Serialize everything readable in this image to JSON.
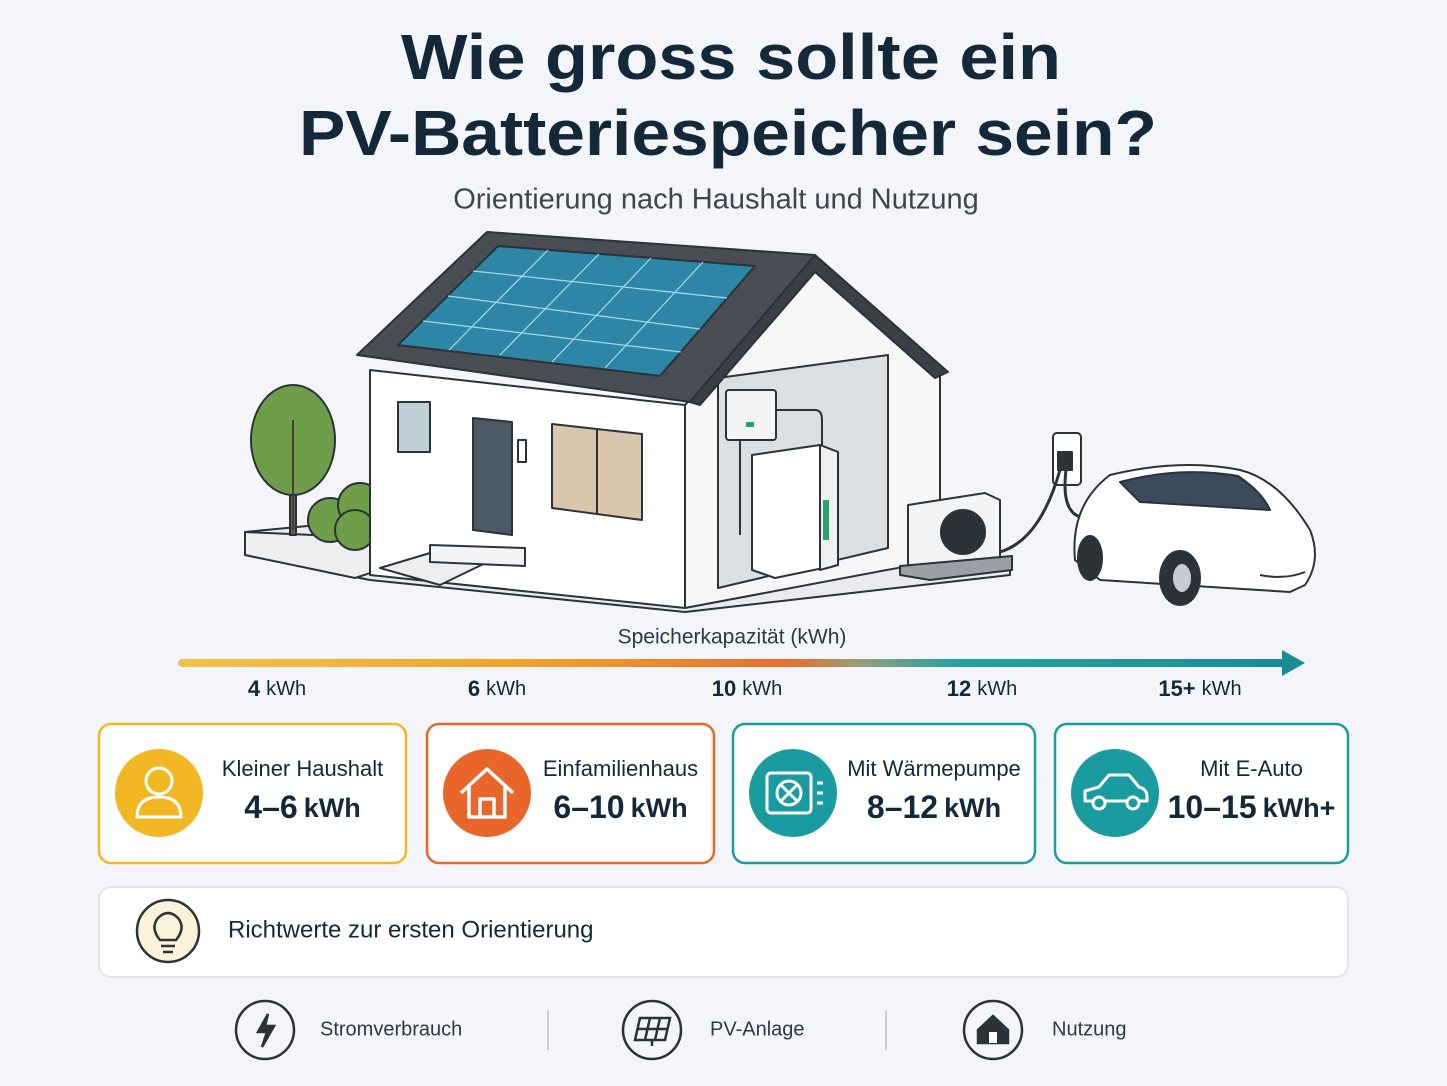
{
  "header": {
    "title_lines": [
      "Wie gross sollte ein",
      "PV-Batteriespeicher sein?"
    ],
    "subtitle": "Orientierung nach Haushalt und Nutzung"
  },
  "scale": {
    "label": "Speicherkapazität (kWh)",
    "ticks": [
      {
        "number": "4",
        "unit": "kWh"
      },
      {
        "number": "6",
        "unit": "kWh"
      },
      {
        "number": "10",
        "unit": "kWh"
      },
      {
        "number": "12",
        "unit": "kWh"
      },
      {
        "number": "15+",
        "unit": "kWh"
      }
    ]
  },
  "cards": [
    {
      "label": "Kleiner Haushalt",
      "range": "4–6",
      "unit": "kWh"
    },
    {
      "label": "Einfamilienhaus",
      "range": "6–10",
      "unit": "kWh"
    },
    {
      "label": "Mit Wärmepumpe",
      "range": "8–12",
      "unit": "kWh"
    },
    {
      "label": "Mit E-Auto",
      "range": "10–15",
      "unit": "kWh+"
    }
  ],
  "note": "Richtwerte zur ersten Orientierung",
  "footer": [
    "Stromverbrauch",
    "PV-Anlage",
    "Nutzung"
  ]
}
